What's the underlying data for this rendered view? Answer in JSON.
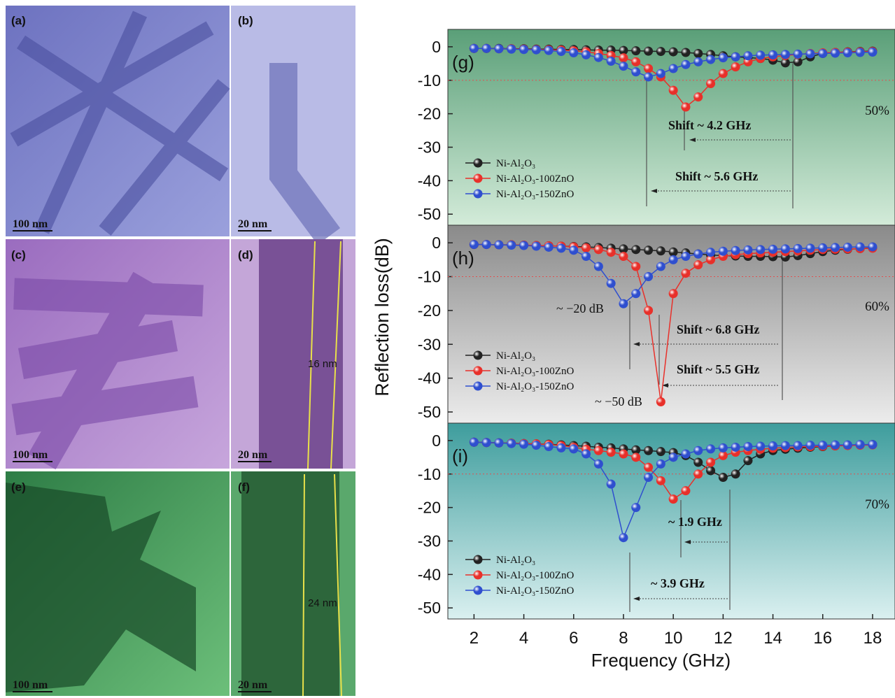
{
  "image_panels": [
    {
      "label": "(a)",
      "scale_bar": "100 nm"
    },
    {
      "label": "(b)",
      "scale_bar": "20 nm"
    },
    {
      "label": "(c)",
      "scale_bar": "100 nm"
    },
    {
      "label": "(d)",
      "scale_bar": "20 nm",
      "measurement": "16 nm"
    },
    {
      "label": "(e)",
      "scale_bar": "100 nm"
    },
    {
      "label": "(f)",
      "scale_bar": "20 nm",
      "measurement": "24 nm"
    }
  ],
  "chart_data": [
    {
      "type": "line",
      "panel_label": "(g)",
      "loading": "50%",
      "annotations": [
        "Shift ~ 4.2 GHz",
        "Shift ~ 5.6 GHz"
      ],
      "reference_line": -10,
      "xlim": [
        0.95,
        18.9
      ],
      "ylim": [
        -53.3,
        5.2
      ],
      "yticks": [
        0,
        -10,
        -20,
        -30,
        -40,
        -50
      ],
      "x": [
        2,
        2.5,
        3,
        3.5,
        4,
        4.5,
        5,
        5.5,
        6,
        6.5,
        7,
        7.5,
        8,
        8.5,
        9,
        9.5,
        10,
        10.5,
        11,
        11.5,
        12,
        12.5,
        13,
        13.5,
        14,
        14.5,
        15,
        15.5,
        16,
        16.5,
        17,
        17.5,
        18
      ],
      "series": [
        {
          "name": "Ni-Al₂O₃",
          "color": "#222222",
          "values": [
            -0.5,
            -0.5,
            -0.5,
            -0.6,
            -0.6,
            -0.7,
            -0.7,
            -0.8,
            -0.8,
            -0.9,
            -1,
            -1,
            -1.1,
            -1.2,
            -1.3,
            -1.4,
            -1.5,
            -1.7,
            -2,
            -2.3,
            -2.7,
            -3,
            -3.2,
            -3.5,
            -4,
            -4.8,
            -4.5,
            -3,
            -2,
            -1.7,
            -1.5,
            -1.4,
            -1.3
          ]
        },
        {
          "name": "Ni-Al₂O₃-100ZnO",
          "color": "#e8302a",
          "values": [
            -0.5,
            -0.5,
            -0.6,
            -0.6,
            -0.7,
            -0.8,
            -0.9,
            -1,
            -1.2,
            -1.5,
            -2,
            -2.6,
            -3.3,
            -4.5,
            -6.5,
            -9,
            -13,
            -18,
            -15,
            -11,
            -8,
            -6,
            -4.5,
            -3.5,
            -3,
            -2.6,
            -2.3,
            -2,
            -1.8,
            -1.7,
            -1.6,
            -1.5,
            -1.4
          ]
        },
        {
          "name": "Ni-Al₂O₃-150ZnO",
          "color": "#2f4fcf",
          "values": [
            -0.5,
            -0.5,
            -0.6,
            -0.7,
            -0.8,
            -0.9,
            -1.1,
            -1.4,
            -1.8,
            -2.4,
            -3.2,
            -4.3,
            -5.8,
            -7.5,
            -9,
            -8,
            -6.5,
            -5.3,
            -4.5,
            -3.8,
            -3.3,
            -3,
            -2.7,
            -2.5,
            -2.4,
            -2.3,
            -2.2,
            -2.1,
            -2,
            -1.9,
            -1.8,
            -1.7,
            -1.6
          ]
        }
      ]
    },
    {
      "type": "line",
      "panel_label": "(h)",
      "loading": "60%",
      "y_label": "Reflection loss(dB)",
      "annotations": [
        "~ −20 dB",
        "Shift ~ 6.8 GHz",
        "Shift ~ 5.5 GHz",
        "~ −50 dB"
      ],
      "reference_line": -10,
      "xlim": [
        0.95,
        18.9
      ],
      "ylim": [
        -53.3,
        5.2
      ],
      "yticks": [
        0,
        -10,
        -20,
        -30,
        -40,
        -50
      ],
      "x": [
        2,
        2.5,
        3,
        3.5,
        4,
        4.5,
        5,
        5.5,
        6,
        6.5,
        7,
        7.5,
        8,
        8.5,
        9,
        9.5,
        10,
        10.5,
        11,
        11.5,
        12,
        12.5,
        13,
        13.5,
        14,
        14.5,
        15,
        15.5,
        16,
        16.5,
        17,
        17.5,
        18
      ],
      "series": [
        {
          "name": "Ni-Al₂O₃",
          "color": "#222222",
          "values": [
            -0.5,
            -0.5,
            -0.6,
            -0.6,
            -0.7,
            -0.8,
            -0.9,
            -1,
            -1.1,
            -1.2,
            -1.4,
            -1.6,
            -1.8,
            -2,
            -2.2,
            -2.4,
            -2.7,
            -3,
            -3.3,
            -3.6,
            -3.8,
            -3.9,
            -4,
            -4,
            -4.1,
            -4.2,
            -3.8,
            -3.2,
            -2.6,
            -2.2,
            -1.9,
            -1.7,
            -1.5
          ]
        },
        {
          "name": "Ni-Al₂O₃-100ZnO",
          "color": "#e8302a",
          "values": [
            -0.5,
            -0.5,
            -0.6,
            -0.6,
            -0.7,
            -0.8,
            -0.9,
            -1,
            -1.2,
            -1.5,
            -2,
            -2.8,
            -4,
            -7,
            -20,
            -47,
            -15,
            -9,
            -6.5,
            -5,
            -4,
            -3.5,
            -3.2,
            -3,
            -2.8,
            -2.6,
            -2.4,
            -2.2,
            -2,
            -1.9,
            -1.8,
            -1.7,
            -1.6
          ]
        },
        {
          "name": "Ni-Al₂O₃-150ZnO",
          "color": "#2f4fcf",
          "values": [
            -0.5,
            -0.5,
            -0.6,
            -0.7,
            -0.8,
            -1,
            -1.3,
            -1.6,
            -2.2,
            -4,
            -7,
            -12,
            -18,
            -15,
            -10,
            -7,
            -5,
            -4,
            -3.3,
            -2.8,
            -2.5,
            -2.3,
            -2.1,
            -2,
            -1.9,
            -1.8,
            -1.7,
            -1.6,
            -1.5,
            -1.4,
            -1.3,
            -1.2,
            -1.2
          ]
        }
      ]
    },
    {
      "type": "line",
      "panel_label": "(i)",
      "loading": "70%",
      "x_label": "Frequency (GHz)",
      "annotations": [
        "~ 1.9 GHz",
        "~ 3.9 GHz"
      ],
      "reference_line": -10,
      "xlim": [
        0.95,
        18.9
      ],
      "ylim": [
        -53.3,
        5.2
      ],
      "yticks": [
        0,
        -10,
        -20,
        -30,
        -40,
        -50
      ],
      "xticks": [
        2,
        4,
        6,
        8,
        10,
        12,
        14,
        16,
        18
      ],
      "x": [
        2,
        2.5,
        3,
        3.5,
        4,
        4.5,
        5,
        5.5,
        6,
        6.5,
        7,
        7.5,
        8,
        8.5,
        9,
        9.5,
        10,
        10.5,
        11,
        11.5,
        12,
        12.5,
        13,
        13.5,
        14,
        14.5,
        15,
        15.5,
        16,
        16.5,
        17,
        17.5,
        18
      ],
      "series": [
        {
          "name": "Ni-Al₂O₃",
          "color": "#222222",
          "values": [
            -0.5,
            -0.6,
            -0.7,
            -0.8,
            -0.9,
            -1,
            -1.1,
            -1.3,
            -1.5,
            -1.7,
            -2,
            -2.2,
            -2.5,
            -2.8,
            -3,
            -3.3,
            -3.6,
            -4.5,
            -6.5,
            -9,
            -11,
            -10,
            -6,
            -4,
            -3,
            -2.6,
            -2.3,
            -2,
            -1.8,
            -1.6,
            -1.4,
            -1.3,
            -1.2
          ]
        },
        {
          "name": "Ni-Al₂O₃-100ZnO",
          "color": "#e8302a",
          "values": [
            -0.5,
            -0.6,
            -0.7,
            -0.8,
            -0.9,
            -1,
            -1.2,
            -1.5,
            -2,
            -2.6,
            -3,
            -3.5,
            -4,
            -5,
            -8,
            -12,
            -17.5,
            -15,
            -10,
            -6.5,
            -4.5,
            -3.5,
            -3,
            -2.6,
            -2.3,
            -2.1,
            -1.9,
            -1.8,
            -1.7,
            -1.6,
            -1.5,
            -1.4,
            -1.3
          ]
        },
        {
          "name": "Ni-Al₂O₃-150ZnO",
          "color": "#2f4fcf",
          "values": [
            -0.5,
            -0.6,
            -0.7,
            -0.9,
            -1.1,
            -1.4,
            -1.8,
            -2.2,
            -2.5,
            -4,
            -7,
            -13,
            -29,
            -20,
            -11,
            -7,
            -5,
            -4,
            -3,
            -2.5,
            -2.2,
            -2,
            -1.8,
            -1.7,
            -1.6,
            -1.5,
            -1.5,
            -1.4,
            -1.4,
            -1.3,
            -1.3,
            -1.2,
            -1.2
          ]
        }
      ]
    }
  ]
}
